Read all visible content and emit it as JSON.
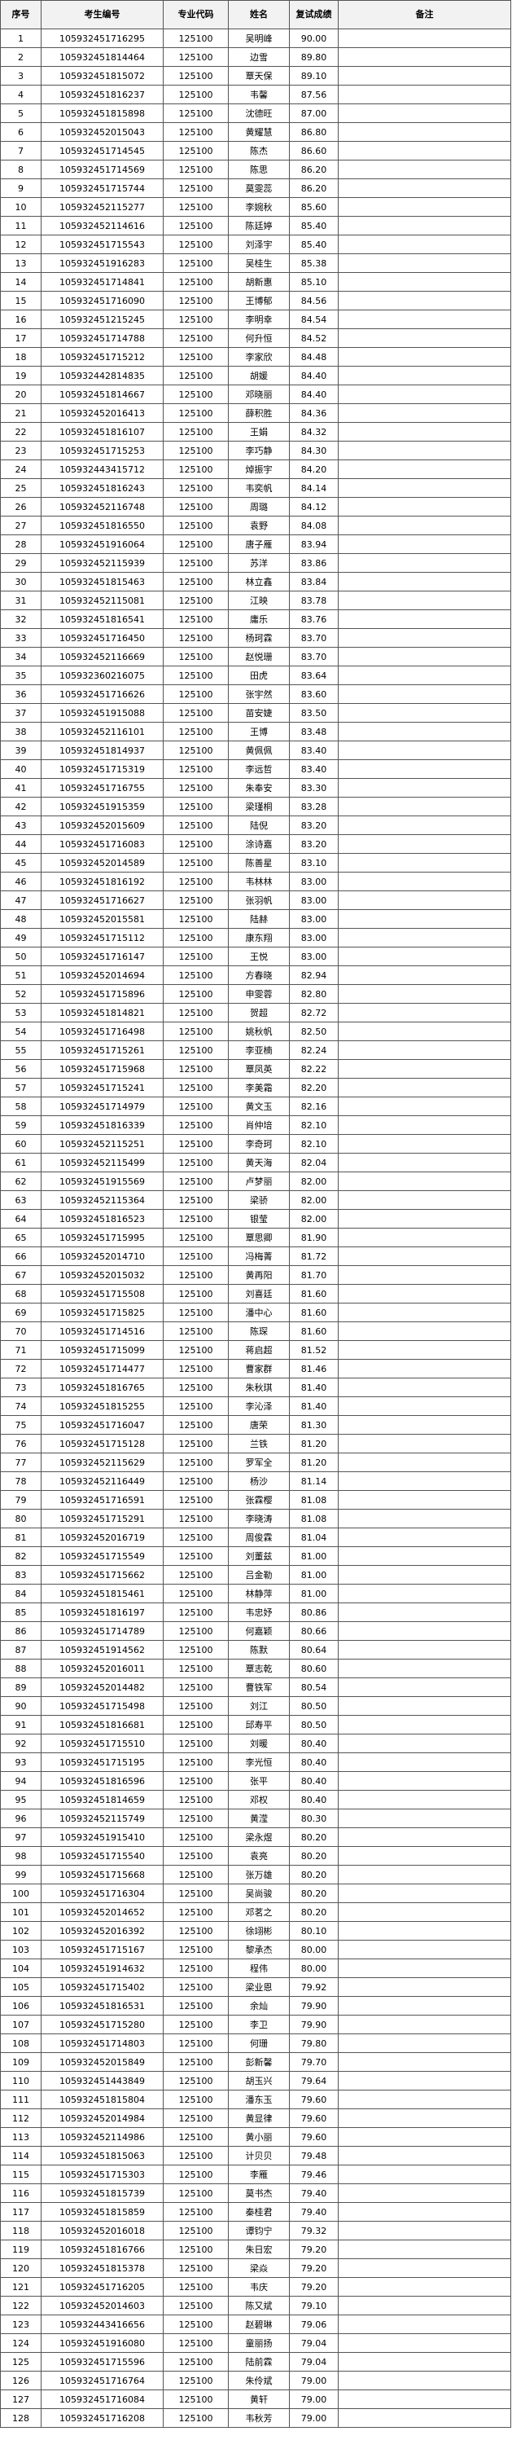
{
  "table": {
    "columns": [
      "序号",
      "考生编号",
      "专业代码",
      "姓名",
      "复试成绩",
      "备注"
    ],
    "rows": [
      [
        "1",
        "105932451716295",
        "125100",
        "吴明峰",
        "90.00"
      ],
      [
        "2",
        "105932451814464",
        "125100",
        "边雪",
        "89.80"
      ],
      [
        "3",
        "105932451815072",
        "125100",
        "覃天保",
        "89.10"
      ],
      [
        "4",
        "105932451816237",
        "125100",
        "韦馨",
        "87.56"
      ],
      [
        "5",
        "105932451815898",
        "125100",
        "沈德旺",
        "87.00"
      ],
      [
        "6",
        "105932452015043",
        "125100",
        "黄耀慧",
        "86.80"
      ],
      [
        "7",
        "105932451714545",
        "125100",
        "陈杰",
        "86.60"
      ],
      [
        "8",
        "105932451714569",
        "125100",
        "陈思",
        "86.20"
      ],
      [
        "9",
        "105932451715744",
        "125100",
        "莫雯蕊",
        "86.20"
      ],
      [
        "10",
        "105932452115277",
        "125100",
        "李婉秋",
        "85.60"
      ],
      [
        "11",
        "105932452114616",
        "125100",
        "陈廷婷",
        "85.40"
      ],
      [
        "12",
        "105932451715543",
        "125100",
        "刘泽宇",
        "85.40"
      ],
      [
        "13",
        "105932451916283",
        "125100",
        "吴桂生",
        "85.38"
      ],
      [
        "14",
        "105932451714841",
        "125100",
        "胡新惠",
        "85.10"
      ],
      [
        "15",
        "105932451716090",
        "125100",
        "王博郁",
        "84.56"
      ],
      [
        "16",
        "105932451215245",
        "125100",
        "李明幸",
        "84.54"
      ],
      [
        "17",
        "105932451714788",
        "125100",
        "何升恒",
        "84.52"
      ],
      [
        "18",
        "105932451715212",
        "125100",
        "李家欣",
        "84.48"
      ],
      [
        "19",
        "105932442814835",
        "125100",
        "胡媛",
        "84.40"
      ],
      [
        "20",
        "105932451814667",
        "125100",
        "邓晓丽",
        "84.40"
      ],
      [
        "21",
        "105932452016413",
        "125100",
        "薛积胜",
        "84.36"
      ],
      [
        "22",
        "105932451816107",
        "125100",
        "王娟",
        "84.32"
      ],
      [
        "23",
        "105932451715253",
        "125100",
        "李巧静",
        "84.30"
      ],
      [
        "24",
        "105932443415712",
        "125100",
        "焯振宇",
        "84.20"
      ],
      [
        "25",
        "105932451816243",
        "125100",
        "韦奕帆",
        "84.14"
      ],
      [
        "26",
        "105932452116748",
        "125100",
        "周璐",
        "84.12"
      ],
      [
        "27",
        "105932451816550",
        "125100",
        "袁野",
        "84.08"
      ],
      [
        "28",
        "105932451916064",
        "125100",
        "唐子雁",
        "83.94"
      ],
      [
        "29",
        "105932452115939",
        "125100",
        "苏洋",
        "83.86"
      ],
      [
        "30",
        "105932451815463",
        "125100",
        "林立鑫",
        "83.84"
      ],
      [
        "31",
        "105932452115081",
        "125100",
        "江映",
        "83.78"
      ],
      [
        "32",
        "105932451816541",
        "125100",
        "庸乐",
        "83.76"
      ],
      [
        "33",
        "105932451716450",
        "125100",
        "杨珂霖",
        "83.70"
      ],
      [
        "34",
        "105932452116669",
        "125100",
        "赵悦珊",
        "83.70"
      ],
      [
        "35",
        "105932360216075",
        "125100",
        "田虎",
        "83.64"
      ],
      [
        "36",
        "105932451716626",
        "125100",
        "张宇然",
        "83.60"
      ],
      [
        "37",
        "105932451915088",
        "125100",
        "苗安婕",
        "83.50"
      ],
      [
        "38",
        "105932452116101",
        "125100",
        "王博",
        "83.48"
      ],
      [
        "39",
        "105932451814937",
        "125100",
        "黄佩佩",
        "83.40"
      ],
      [
        "40",
        "105932451715319",
        "125100",
        "李远哲",
        "83.40"
      ],
      [
        "41",
        "105932451716755",
        "125100",
        "朱奉安",
        "83.30"
      ],
      [
        "42",
        "105932451915359",
        "125100",
        "梁瑾桐",
        "83.28"
      ],
      [
        "43",
        "105932452015609",
        "125100",
        "陆倪",
        "83.20"
      ],
      [
        "44",
        "105932451716083",
        "125100",
        "涂诗嘉",
        "83.20"
      ],
      [
        "45",
        "105932452014589",
        "125100",
        "陈善星",
        "83.10"
      ],
      [
        "46",
        "105932451816192",
        "125100",
        "韦林林",
        "83.00"
      ],
      [
        "47",
        "105932451716627",
        "125100",
        "张羽帆",
        "83.00"
      ],
      [
        "48",
        "105932452015581",
        "125100",
        "陆赫",
        "83.00"
      ],
      [
        "49",
        "105932451715112",
        "125100",
        "康东翔",
        "83.00"
      ],
      [
        "50",
        "105932451716147",
        "125100",
        "王悦",
        "83.00"
      ],
      [
        "51",
        "105932452014694",
        "125100",
        "方春晓",
        "82.94"
      ],
      [
        "52",
        "105932451715896",
        "125100",
        "申雯蓉",
        "82.80"
      ],
      [
        "53",
        "105932451814821",
        "125100",
        "贺超",
        "82.72"
      ],
      [
        "54",
        "105932451716498",
        "125100",
        "姚秋帆",
        "82.50"
      ],
      [
        "55",
        "105932451715261",
        "125100",
        "李亚楠",
        "82.24"
      ],
      [
        "56",
        "105932451715968",
        "125100",
        "覃凤英",
        "82.22"
      ],
      [
        "57",
        "105932451715241",
        "125100",
        "李美霜",
        "82.20"
      ],
      [
        "58",
        "105932451714979",
        "125100",
        "黄文玉",
        "82.16"
      ],
      [
        "59",
        "105932451816339",
        "125100",
        "肖仲培",
        "82.10"
      ],
      [
        "60",
        "105932452115251",
        "125100",
        "李奇珂",
        "82.10"
      ],
      [
        "61",
        "105932452115499",
        "125100",
        "黄天海",
        "82.04"
      ],
      [
        "62",
        "105932451915569",
        "125100",
        "卢梦丽",
        "82.00"
      ],
      [
        "63",
        "105932452115364",
        "125100",
        "梁骄",
        "82.00"
      ],
      [
        "64",
        "105932451816523",
        "125100",
        "银莹",
        "82.00"
      ],
      [
        "65",
        "105932451715995",
        "125100",
        "覃思卿",
        "81.90"
      ],
      [
        "66",
        "105932452014710",
        "125100",
        "冯梅菁",
        "81.72"
      ],
      [
        "67",
        "105932452015032",
        "125100",
        "黄再阳",
        "81.70"
      ],
      [
        "68",
        "105932451715508",
        "125100",
        "刘喜廷",
        "81.60"
      ],
      [
        "69",
        "105932451715825",
        "125100",
        "潘中心",
        "81.60"
      ],
      [
        "70",
        "105932451714516",
        "125100",
        "陈琛",
        "81.60"
      ],
      [
        "71",
        "105932451715099",
        "125100",
        "蒋启超",
        "81.52"
      ],
      [
        "72",
        "105932451714477",
        "125100",
        "曹家群",
        "81.46"
      ],
      [
        "73",
        "105932451816765",
        "125100",
        "朱秋琪",
        "81.40"
      ],
      [
        "74",
        "105932451815255",
        "125100",
        "李沁泽",
        "81.40"
      ],
      [
        "75",
        "105932451716047",
        "125100",
        "唐荣",
        "81.30"
      ],
      [
        "76",
        "105932451715128",
        "125100",
        "兰铁",
        "81.20"
      ],
      [
        "77",
        "105932452115629",
        "125100",
        "罗军全",
        "81.20"
      ],
      [
        "78",
        "105932452116449",
        "125100",
        "杨沙",
        "81.14"
      ],
      [
        "79",
        "105932451716591",
        "125100",
        "张霖樱",
        "81.08"
      ],
      [
        "80",
        "105932451715291",
        "125100",
        "李晓涛",
        "81.08"
      ],
      [
        "81",
        "105932452016719",
        "125100",
        "周俊霖",
        "81.04"
      ],
      [
        "82",
        "105932451715549",
        "125100",
        "刘董兹",
        "81.00"
      ],
      [
        "83",
        "105932451715662",
        "125100",
        "吕金勒",
        "81.00"
      ],
      [
        "84",
        "105932451815461",
        "125100",
        "林静萍",
        "81.00"
      ],
      [
        "85",
        "105932451816197",
        "125100",
        "韦忠妤",
        "80.86"
      ],
      [
        "86",
        "105932451714789",
        "125100",
        "何嘉颖",
        "80.66"
      ],
      [
        "87",
        "105932451914562",
        "125100",
        "陈默",
        "80.64"
      ],
      [
        "88",
        "105932452016011",
        "125100",
        "覃志乾",
        "80.60"
      ],
      [
        "89",
        "105932452014482",
        "125100",
        "曹铁军",
        "80.54"
      ],
      [
        "90",
        "105932451715498",
        "125100",
        "刘江",
        "80.50"
      ],
      [
        "91",
        "105932451816681",
        "125100",
        "邱寿平",
        "80.50"
      ],
      [
        "92",
        "105932451715510",
        "125100",
        "刘暖",
        "80.40"
      ],
      [
        "93",
        "105932451715195",
        "125100",
        "李光恒",
        "80.40"
      ],
      [
        "94",
        "105932451816596",
        "125100",
        "张平",
        "80.40"
      ],
      [
        "95",
        "105932451814659",
        "125100",
        "邓权",
        "80.40"
      ],
      [
        "96",
        "105932452115749",
        "125100",
        "黄滢",
        "80.30"
      ],
      [
        "97",
        "105932451915410",
        "125100",
        "梁永煜",
        "80.20"
      ],
      [
        "98",
        "105932451715540",
        "125100",
        "袁亮",
        "80.20"
      ],
      [
        "99",
        "105932451715668",
        "125100",
        "张万雄",
        "80.20"
      ],
      [
        "100",
        "105932451716304",
        "125100",
        "吴尚骏",
        "80.20"
      ],
      [
        "101",
        "105932452014652",
        "125100",
        "邓茗之",
        "80.20"
      ],
      [
        "102",
        "105932452016392",
        "125100",
        "徐翊彬",
        "80.10"
      ],
      [
        "103",
        "105932451715167",
        "125100",
        "黎承杰",
        "80.00"
      ],
      [
        "104",
        "105932451914632",
        "125100",
        "程伟",
        "80.00"
      ],
      [
        "105",
        "105932451715402",
        "125100",
        "梁业恩",
        "79.92"
      ],
      [
        "106",
        "105932451816531",
        "125100",
        "余灿",
        "79.90"
      ],
      [
        "107",
        "105932451715280",
        "125100",
        "李卫",
        "79.90"
      ],
      [
        "108",
        "105932451714803",
        "125100",
        "何珊",
        "79.80"
      ],
      [
        "109",
        "105932452015849",
        "125100",
        "彭新馨",
        "79.70"
      ],
      [
        "110",
        "105932451443849",
        "125100",
        "胡玉兴",
        "79.64"
      ],
      [
        "111",
        "105932451815804",
        "125100",
        "潘东玉",
        "79.60"
      ],
      [
        "112",
        "105932452014984",
        "125100",
        "黄显律",
        "79.60"
      ],
      [
        "113",
        "105932452114986",
        "125100",
        "黄小丽",
        "79.60"
      ],
      [
        "114",
        "105932451815063",
        "125100",
        "计贝贝",
        "79.48"
      ],
      [
        "115",
        "105932451715303",
        "125100",
        "李雁",
        "79.46"
      ],
      [
        "116",
        "105932451815739",
        "125100",
        "莫书杰",
        "79.40"
      ],
      [
        "117",
        "105932451815859",
        "125100",
        "秦桂君",
        "79.40"
      ],
      [
        "118",
        "105932452016018",
        "125100",
        "谭钧宁",
        "79.32"
      ],
      [
        "119",
        "105932451816766",
        "125100",
        "朱日宏",
        "79.20"
      ],
      [
        "120",
        "105932451815378",
        "125100",
        "梁焱",
        "79.20"
      ],
      [
        "121",
        "105932451716205",
        "125100",
        "韦庆",
        "79.20"
      ],
      [
        "122",
        "105932452014603",
        "125100",
        "陈又斌",
        "79.10"
      ],
      [
        "123",
        "105932443416656",
        "125100",
        "赵碧琳",
        "79.06"
      ],
      [
        "124",
        "105932451916080",
        "125100",
        "童丽扬",
        "79.04"
      ],
      [
        "125",
        "105932451715596",
        "125100",
        "陆前霖",
        "79.04"
      ],
      [
        "126",
        "105932451716764",
        "125100",
        "朱伶斌",
        "79.00"
      ],
      [
        "127",
        "105932451716084",
        "125100",
        "黄轩",
        "79.00"
      ],
      [
        "128",
        "105932451716208",
        "125100",
        "韦秋芳",
        "79.00"
      ]
    ]
  }
}
